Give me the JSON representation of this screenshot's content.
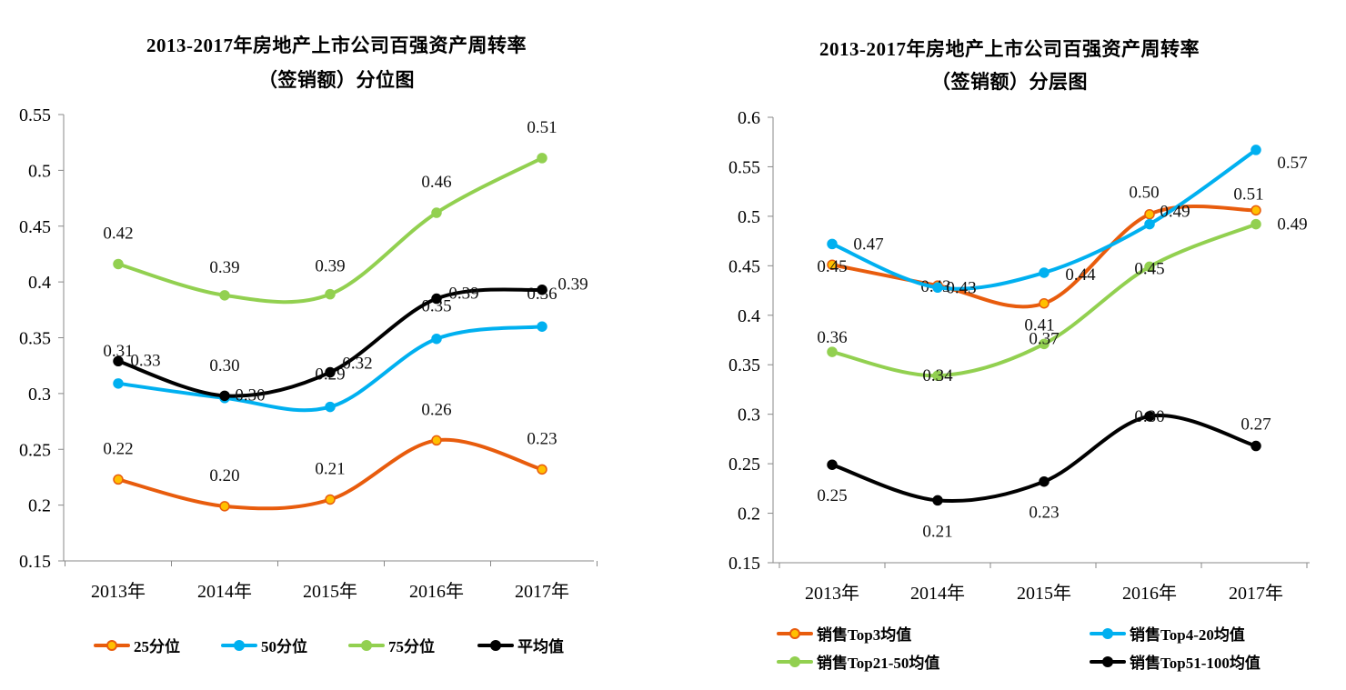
{
  "chart_data": [
    {
      "type": "line",
      "title_line1": "2013-2017年房地产上市公司百强资产周转率",
      "title_line2": "（签销额）分位图",
      "categories": [
        "2013年",
        "2014年",
        "2015年",
        "2016年",
        "2017年"
      ],
      "ylim": [
        0.15,
        0.55
      ],
      "yticks": [
        "0.15",
        "0.2",
        "0.25",
        "0.3",
        "0.35",
        "0.4",
        "0.45",
        "0.5",
        "0.55"
      ],
      "xlabel": "",
      "ylabel": "",
      "legend_position": "bottom",
      "series": [
        {
          "name": "25分位",
          "color": "#E85C0D",
          "marker_fill": "#FFC000",
          "values": [
            0.223,
            0.199,
            0.205,
            0.258,
            0.232
          ],
          "labels": [
            "0.22",
            "0.20",
            "0.21",
            "0.26",
            "0.23"
          ]
        },
        {
          "name": "50分位",
          "color": "#00B0F0",
          "marker_fill": "#00B0F0",
          "values": [
            0.309,
            0.296,
            0.288,
            0.349,
            0.36
          ],
          "labels": [
            "0.31",
            "0.30",
            "0.29",
            "0.35",
            "0.36"
          ]
        },
        {
          "name": "75分位",
          "color": "#92D050",
          "marker_fill": "#92D050",
          "values": [
            0.416,
            0.388,
            0.389,
            0.462,
            0.511
          ],
          "labels": [
            "0.42",
            "0.39",
            "0.39",
            "0.46",
            "0.51"
          ]
        },
        {
          "name": "平均值",
          "color": "#000000",
          "marker_fill": "#000000",
          "values": [
            0.329,
            0.298,
            0.319,
            0.385,
            0.393
          ],
          "labels": [
            "0.33",
            "0.30",
            "0.32",
            "0.39",
            "0.39"
          ]
        }
      ]
    },
    {
      "type": "line",
      "title_line1": "2013-2017年房地产上市公司百强资产周转率",
      "title_line2": "（签销额）分层图",
      "categories": [
        "2013年",
        "2014年",
        "2015年",
        "2016年",
        "2017年"
      ],
      "ylim": [
        0.15,
        0.6
      ],
      "yticks": [
        "0.15",
        "0.2",
        "0.25",
        "0.3",
        "0.35",
        "0.4",
        "0.45",
        "0.5",
        "0.55",
        "0.6"
      ],
      "xlabel": "",
      "ylabel": "",
      "legend_position": "bottom",
      "series": [
        {
          "name": "销售Top3均值",
          "color": "#E85C0D",
          "marker_fill": "#FFC000",
          "values": [
            0.451,
            0.43,
            0.412,
            0.502,
            0.506
          ],
          "labels": [
            "0.45",
            "0.43",
            "0.41",
            "0.50",
            "0.51"
          ]
        },
        {
          "name": "销售Top4-20均值",
          "color": "#00B0F0",
          "marker_fill": "#00B0F0",
          "values": [
            0.472,
            0.428,
            0.443,
            0.492,
            0.567
          ],
          "labels": [
            "0.47",
            "0.43",
            "0.44",
            "0.49",
            "0.57"
          ]
        },
        {
          "name": "销售Top21-50均值",
          "color": "#92D050",
          "marker_fill": "#92D050",
          "values": [
            0.363,
            0.339,
            0.371,
            0.449,
            0.492
          ],
          "labels": [
            "0.36",
            "0.34",
            "0.37",
            "0.45",
            "0.49"
          ]
        },
        {
          "name": "销售Top51-100均值",
          "color": "#000000",
          "marker_fill": "#000000",
          "values": [
            0.249,
            0.213,
            0.232,
            0.298,
            0.268
          ],
          "labels": [
            "0.25",
            "0.21",
            "0.23",
            "0.30",
            "0.27"
          ]
        }
      ]
    }
  ]
}
